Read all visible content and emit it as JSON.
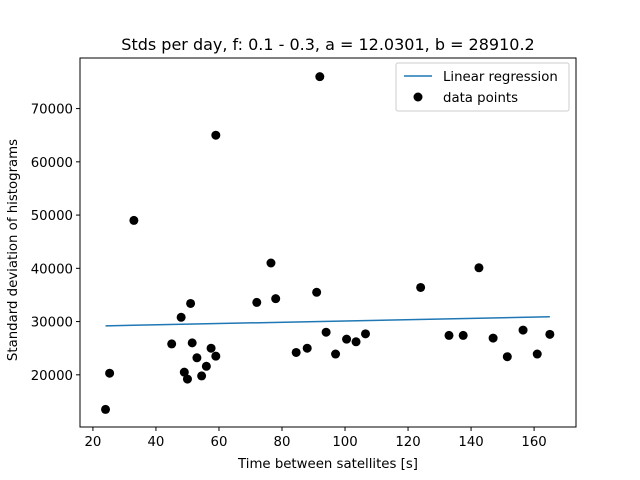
{
  "chart_data": {
    "type": "scatter",
    "title": "Stds per day, f: 0.1 - 0.3, a = 12.0301, b = 28910.2",
    "xlabel": "Time between satellites [s]",
    "ylabel": "Standard deviation of histograms",
    "xlim": [
      15.9,
      173.3
    ],
    "ylim": [
      10200,
      79500
    ],
    "xticks": [
      20,
      40,
      60,
      80,
      100,
      120,
      140,
      160
    ],
    "yticks": [
      20000,
      30000,
      40000,
      50000,
      60000,
      70000
    ],
    "legend_position": "top-right",
    "series": [
      {
        "name": "Linear regression",
        "kind": "line",
        "color": "#1f77b4",
        "x": [
          24,
          165
        ],
        "y": [
          29198.9,
          30895.2
        ]
      },
      {
        "name": "data points",
        "kind": "scatter",
        "color": "#000000",
        "x": [
          24,
          25.3,
          33,
          45,
          48,
          49,
          50,
          51,
          51.5,
          53,
          54.5,
          56,
          57.5,
          59,
          59,
          72,
          76.5,
          78,
          84.5,
          88,
          91,
          92,
          94,
          97,
          100.5,
          103.5,
          106.5,
          124,
          133,
          137.5,
          142.5,
          147,
          151.5,
          156.5,
          161,
          165
        ],
        "y": [
          13500,
          20300,
          49000,
          25800,
          30800,
          20500,
          19200,
          33400,
          26000,
          23200,
          19800,
          21600,
          25000,
          23500,
          65000,
          33600,
          41000,
          34300,
          24200,
          25000,
          35500,
          76000,
          28000,
          23900,
          26700,
          26200,
          27700,
          36400,
          27400,
          27400,
          40100,
          26900,
          23400,
          28400,
          23900,
          27600
        ]
      }
    ]
  }
}
